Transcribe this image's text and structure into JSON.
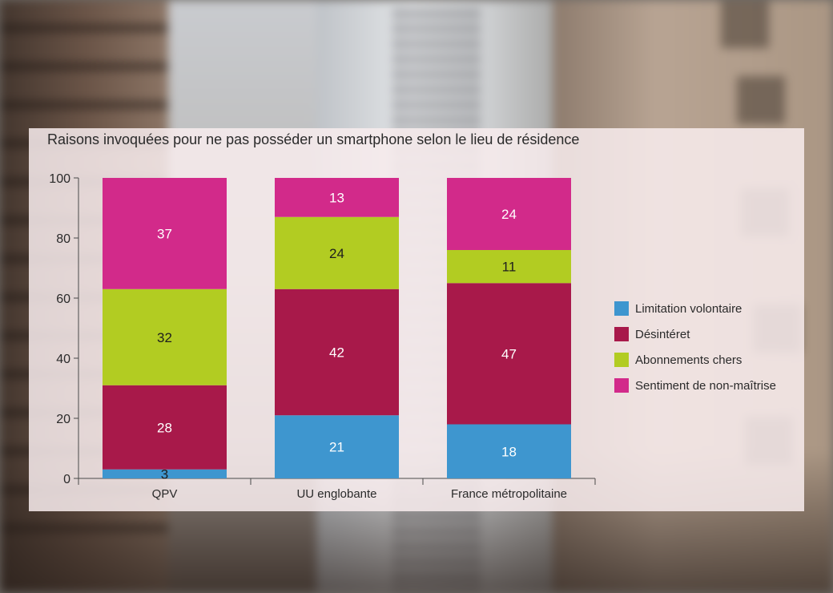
{
  "colors": {
    "limitation": "#3e96cf",
    "desinteret": "#a8194a",
    "abonnements": "#b2cc22",
    "sentiment": "#d22a8a"
  },
  "chart_data": {
    "type": "bar",
    "stacked": true,
    "title": "Raisons invoquées pour ne pas posséder un smartphone selon le lieu de résidence",
    "xlabel": "",
    "ylabel": "",
    "ylim": [
      0,
      100
    ],
    "yticks": [
      0,
      20,
      40,
      60,
      80,
      100
    ],
    "categories": [
      "QPV",
      "UU englobante",
      "France métropolitaine"
    ],
    "series": [
      {
        "name": "Limitation volontaire",
        "color": "#3e96cf",
        "values": [
          3,
          21,
          18
        ]
      },
      {
        "name": "Désintéret",
        "color": "#a8194a",
        "values": [
          28,
          42,
          47
        ]
      },
      {
        "name": "Abonnements chers",
        "color": "#b2cc22",
        "values": [
          32,
          24,
          11
        ]
      },
      {
        "name": "Sentiment de non-maîtrise",
        "color": "#d22a8a",
        "values": [
          37,
          13,
          24
        ]
      }
    ],
    "grid": false,
    "legend": "right"
  }
}
